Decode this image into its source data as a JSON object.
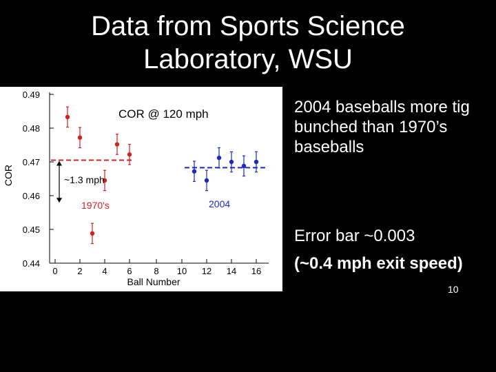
{
  "slide": {
    "title_lines": [
      "Data from Sports Science",
      "Laboratory, WSU"
    ],
    "bullets": [
      {
        "lines": [
          "2004 baseballs more tig",
          "bunched than 1970’s",
          "baseballs"
        ]
      },
      {
        "lines": [
          "Error bar ~0.003"
        ]
      },
      {
        "lines": [
          "(~0.4 mph exit speed)"
        ]
      }
    ],
    "slide_number": "10"
  },
  "chart_data": {
    "type": "scatter",
    "title": "COR @ 120 mph",
    "xlabel": "Ball Number",
    "ylabel": "COR",
    "x_ticks": [
      "0",
      "2",
      "4",
      "6",
      "8",
      "10",
      "12",
      "14",
      "16"
    ],
    "y_ticks": [
      "0.49",
      "0.48",
      "0.47",
      "0.46",
      "0.45",
      "0.44"
    ],
    "ylim": [
      0.44,
      0.49
    ],
    "series": [
      {
        "name": "1970's",
        "color": "#d42020",
        "error_bar": 0.003,
        "points": [
          {
            "x": 1,
            "y": 0.4833
          },
          {
            "x": 2,
            "y": 0.4772
          },
          {
            "x": 3,
            "y": 0.4488
          },
          {
            "x": 4,
            "y": 0.4645
          },
          {
            "x": 5,
            "y": 0.4752
          },
          {
            "x": 6,
            "y": 0.4722
          }
        ],
        "mean_y": 0.4705
      },
      {
        "name": "2004",
        "color": "#1a28c8",
        "error_bar": 0.003,
        "points": [
          {
            "x": 11,
            "y": 0.4672
          },
          {
            "x": 12,
            "y": 0.4645
          },
          {
            "x": 13,
            "y": 0.4712
          },
          {
            "x": 14,
            "y": 0.47
          },
          {
            "x": 15,
            "y": 0.4688
          },
          {
            "x": 16,
            "y": 0.47
          }
        ],
        "mean_y": 0.4683
      }
    ],
    "annotations": {
      "gap": "~1.3 mph",
      "label_1970": "1970's",
      "label_2004": "2004"
    },
    "legend": "none",
    "grid": false
  }
}
